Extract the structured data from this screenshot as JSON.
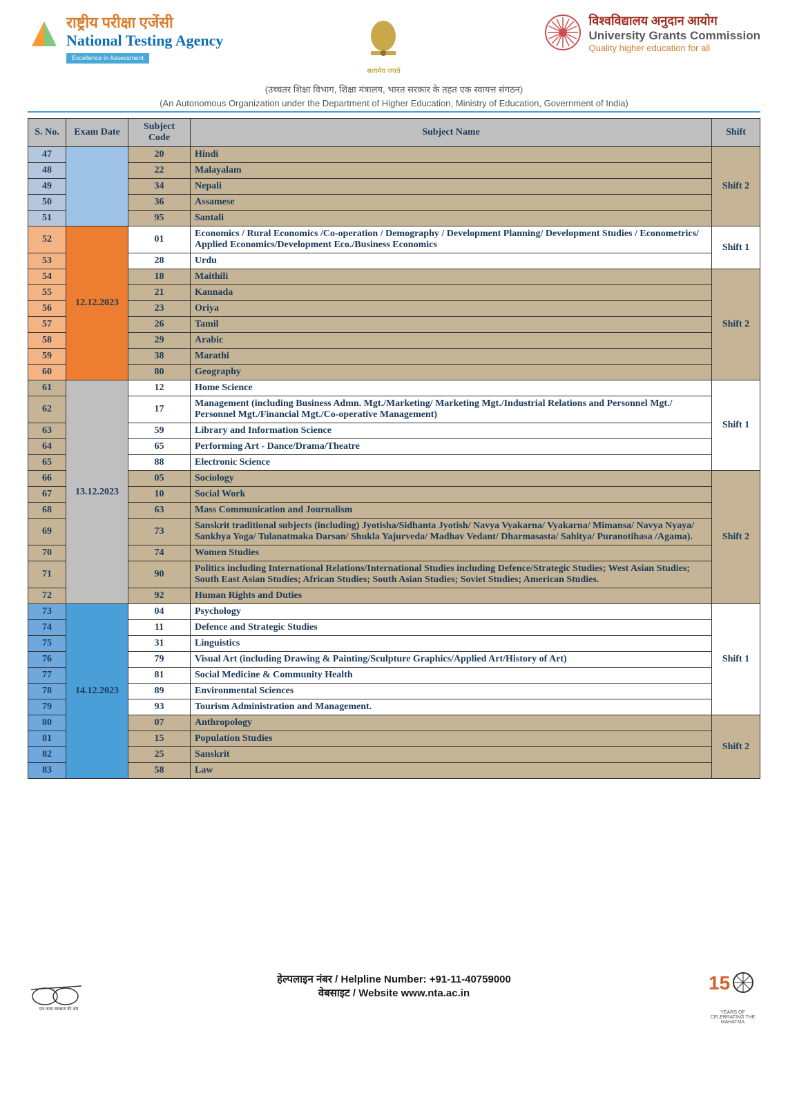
{
  "header": {
    "nta_hindi": "राष्ट्रीय परीक्षा एजेंसी",
    "nta_eng": "National Testing Agency",
    "nta_badge": "Excellence in Assessment",
    "emblem_text": "सत्यमेव जयते",
    "ugc_hindi": "विश्वविद्यालय अनुदान आयोग",
    "ugc_eng": "University Grants Commission",
    "ugc_tag": "Quality higher education for all",
    "sub_hindi": "(उच्चतर शिक्षा विभाग, शिक्षा मंत्रालय, भारत सरकार के तहत एक स्वायत्त संगठन)",
    "sub_eng": "(An Autonomous Organization under the Department of Higher Education, Ministry of Education, Government of India)"
  },
  "table": {
    "headers": {
      "sno": "S. No.",
      "date": "Exam Date",
      "code": "Subject Code",
      "subject": "Subject Name",
      "shift": "Shift"
    },
    "colors": {
      "group1_sno": "#b4c7dc",
      "group2_sno": "#f4b383",
      "group3_sno": "#c5b495",
      "group4_sno": "#6fa8dc",
      "date_a": "#9ec3e6",
      "date_b": "#ed7d31",
      "date_c": "#bfbfbf",
      "date_d": "#4a9fd8",
      "shift1": "#ffffff",
      "shift2": "#c5b495",
      "plain": "#ffffff",
      "shade": "#c5b495"
    },
    "groups": [
      {
        "date": "",
        "date_rowspan": 5,
        "date_color": "#9ec3e6",
        "sno_color": "#b4c7dc",
        "row_color": "#c5b495",
        "shift": "Shift 2",
        "shift_color": "#c5b495",
        "rows": [
          {
            "sno": "47",
            "code": "20",
            "subject": "Hindi"
          },
          {
            "sno": "48",
            "code": "22",
            "subject": "Malayalam"
          },
          {
            "sno": "49",
            "code": "34",
            "subject": "Nepali"
          },
          {
            "sno": "50",
            "code": "36",
            "subject": "Assamese"
          },
          {
            "sno": "51",
            "code": "95",
            "subject": "Santali"
          }
        ]
      },
      {
        "date": "12.12.2023",
        "date_rowspan": 9,
        "date_color": "#ed7d31",
        "sno_color": "#f4b383",
        "shifts": [
          {
            "shift": "Shift 1",
            "shift_color": "#ffffff",
            "row_color": "#ffffff",
            "rows": [
              {
                "sno": "52",
                "code": "01",
                "subject": "Economics / Rural Economics /Co-operation / Demography / Development Planning/ Development Studies / Econometrics/ Applied Economics/Development Eco./Business Economics"
              },
              {
                "sno": "53",
                "code": "28",
                "subject": "Urdu"
              }
            ]
          },
          {
            "shift": "Shift 2",
            "shift_color": "#c5b495",
            "row_color": "#c5b495",
            "rows": [
              {
                "sno": "54",
                "code": "18",
                "subject": "Maithili"
              },
              {
                "sno": "55",
                "code": "21",
                "subject": "Kannada"
              },
              {
                "sno": "56",
                "code": "23",
                "subject": "Oriya"
              },
              {
                "sno": "57",
                "code": "26",
                "subject": "Tamil"
              },
              {
                "sno": "58",
                "code": "29",
                "subject": "Arabic"
              },
              {
                "sno": "59",
                "code": "38",
                "subject": "Marathi"
              },
              {
                "sno": "60",
                "code": "80",
                "subject": "Geography"
              }
            ]
          }
        ]
      },
      {
        "date": "13.12.2023",
        "date_rowspan": 12,
        "date_color": "#bfbfbf",
        "sno_color": "#c5b495",
        "shifts": [
          {
            "shift": "Shift 1",
            "shift_color": "#ffffff",
            "row_color": "#ffffff",
            "rows": [
              {
                "sno": "61",
                "code": "12",
                "subject": "Home Science"
              },
              {
                "sno": "62",
                "code": "17",
                "subject": "Management (including Business Admn. Mgt./Marketing/ Marketing Mgt./Industrial Relations and Personnel Mgt./ Personnel Mgt./Financial Mgt./Co-operative Management)"
              },
              {
                "sno": "63",
                "code": "59",
                "subject": "Library and Information Science"
              },
              {
                "sno": "64",
                "code": "65",
                "subject": "Performing Art - Dance/Drama/Theatre"
              },
              {
                "sno": "65",
                "code": "88",
                "subject": "Electronic Science"
              }
            ]
          },
          {
            "shift": "Shift 2",
            "shift_color": "#c5b495",
            "row_color": "#c5b495",
            "rows": [
              {
                "sno": "66",
                "code": "05",
                "subject": "Sociology"
              },
              {
                "sno": "67",
                "code": "10",
                "subject": "Social Work"
              },
              {
                "sno": "68",
                "code": "63",
                "subject": "Mass Communication and Journalism"
              },
              {
                "sno": "69",
                "code": "73",
                "subject": "Sanskrit traditional subjects (including) Jyotisha/Sidhanta Jyotish/ Navya Vyakarna/ Vyakarna/ Mimansa/ Navya Nyaya/ Sankhya Yoga/ Tulanatmaka Darsan/ Shukla Yajurveda/ Madhav Vedant/ Dharmasasta/ Sahitya/ Puranotihasa /Agama)."
              },
              {
                "sno": "70",
                "code": "74",
                "subject": "Women Studies"
              },
              {
                "sno": "71",
                "code": "90",
                "subject": "Politics including International Relations/International Studies including Defence/Strategic Studies; West Asian Studies; South East Asian Studies; African Studies; South Asian Studies; Soviet Studies; American Studies."
              },
              {
                "sno": "72",
                "code": "92",
                "subject": "Human Rights and Duties"
              }
            ]
          }
        ]
      },
      {
        "date": "14.12.2023",
        "date_rowspan": 11,
        "date_color": "#4a9fd8",
        "sno_color": "#6fa8dc",
        "shifts": [
          {
            "shift": "Shift 1",
            "shift_color": "#ffffff",
            "row_color": "#ffffff",
            "rows": [
              {
                "sno": "73",
                "code": "04",
                "subject": "Psychology"
              },
              {
                "sno": "74",
                "code": "11",
                "subject": "Defence and Strategic Studies"
              },
              {
                "sno": "75",
                "code": "31",
                "subject": "Linguistics"
              },
              {
                "sno": "76",
                "code": "79",
                "subject": "Visual Art (including Drawing & Painting/Sculpture Graphics/Applied Art/History of Art)"
              },
              {
                "sno": "77",
                "code": "81",
                "subject": "Social Medicine & Community Health"
              },
              {
                "sno": "78",
                "code": "89",
                "subject": "Environmental Sciences"
              },
              {
                "sno": "79",
                "code": "93",
                "subject": "Tourism Administration and Management."
              }
            ]
          },
          {
            "shift": "Shift 2",
            "shift_color": "#c5b495",
            "row_color": "#c5b495",
            "rows": [
              {
                "sno": "80",
                "code": "07",
                "subject": "Anthropology"
              },
              {
                "sno": "81",
                "code": "15",
                "subject": "Population Studies"
              },
              {
                "sno": "82",
                "code": "25",
                "subject": "Sanskrit"
              },
              {
                "sno": "83",
                "code": "58",
                "subject": "Law"
              }
            ]
          }
        ]
      }
    ]
  },
  "footer": {
    "helpline": "हेल्पलाइन नंबर / Helpline Number: +91-11-40759000",
    "website": "वेबसाइट / Website www.nta.ac.in",
    "years": "YEARS OF CELEBRATING THE MAHATMA"
  }
}
